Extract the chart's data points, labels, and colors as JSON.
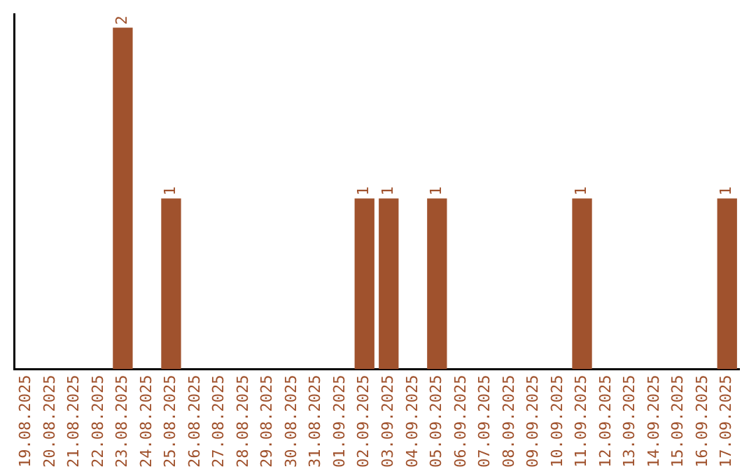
{
  "chart_data": {
    "type": "bar",
    "categories": [
      "19.08.2025",
      "20.08.2025",
      "21.08.2025",
      "22.08.2025",
      "23.08.2025",
      "24.08.2025",
      "25.08.2025",
      "26.08.2025",
      "27.08.2025",
      "28.08.2025",
      "29.08.2025",
      "30.08.2025",
      "31.08.2025",
      "01.09.2025",
      "02.09.2025",
      "03.09.2025",
      "04.09.2025",
      "05.09.2025",
      "06.09.2025",
      "07.09.2025",
      "08.09.2025",
      "09.09.2025",
      "10.09.2025",
      "11.09.2025",
      "12.09.2025",
      "13.09.2025",
      "14.09.2025",
      "15.09.2025",
      "16.09.2025",
      "17.09.2025"
    ],
    "values": [
      0,
      0,
      0,
      0,
      2,
      0,
      1,
      0,
      0,
      0,
      0,
      0,
      0,
      0,
      1,
      1,
      0,
      1,
      0,
      0,
      0,
      0,
      0,
      1,
      0,
      0,
      0,
      0,
      0,
      1
    ],
    "value_labels": [
      null,
      null,
      null,
      null,
      "2",
      null,
      "1",
      null,
      null,
      null,
      null,
      null,
      null,
      null,
      "1",
      "1",
      null,
      "1",
      null,
      null,
      null,
      null,
      null,
      "1",
      null,
      null,
      null,
      null,
      null,
      "1"
    ],
    "color": "#a0522d",
    "ylim": [
      0,
      2.08
    ],
    "tick_labels": "x",
    "grid": false,
    "legend": false
  }
}
